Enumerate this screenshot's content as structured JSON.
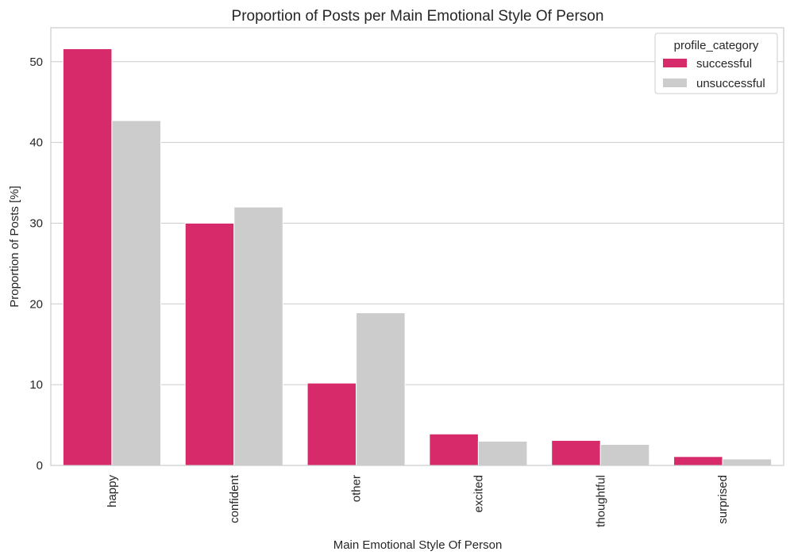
{
  "chart_data": {
    "type": "bar",
    "title": "Proportion of Posts per Main Emotional Style Of Person",
    "xlabel": "Main Emotional Style Of Person",
    "ylabel": "Proportion of Posts [%]",
    "categories": [
      "happy",
      "confident",
      "other",
      "excited",
      "thoughtful",
      "surprised"
    ],
    "series": [
      {
        "name": "successful",
        "color": "#d62a6a",
        "values": [
          51.6,
          30.0,
          10.2,
          3.9,
          3.1,
          1.1
        ]
      },
      {
        "name": "unsuccessful",
        "color": "#cccccc",
        "values": [
          42.7,
          32.0,
          18.9,
          3.0,
          2.6,
          0.8
        ]
      }
    ],
    "ylim": [
      0,
      54.2
    ],
    "yticks": [
      0,
      10,
      20,
      30,
      40,
      50
    ],
    "grid": true,
    "legend": {
      "title": "profile_category",
      "placement": "top-right"
    }
  }
}
